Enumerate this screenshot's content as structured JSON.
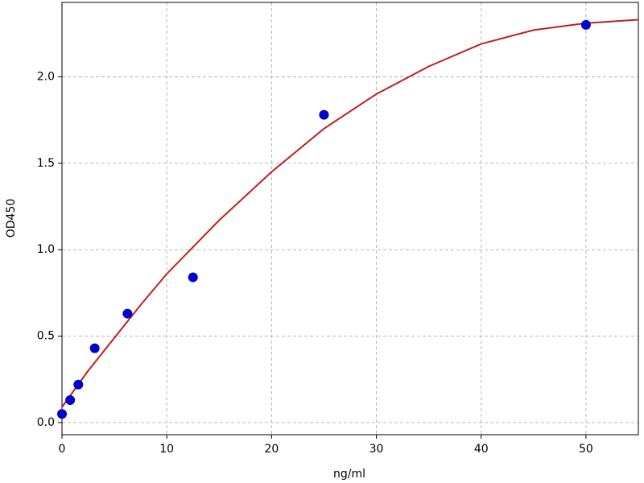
{
  "chart_data": {
    "type": "scatter",
    "x_label": "ng/ml",
    "y_label": "OD450",
    "xlim": [
      0,
      55
    ],
    "xticks": [
      0,
      10,
      20,
      30,
      40,
      50
    ],
    "ylim": [
      -0.07,
      2.43
    ],
    "yticks": [
      {
        "value": 0,
        "label": "0.0"
      },
      0.5,
      {
        "value": 1,
        "label": "1.0"
      },
      1.5,
      {
        "value": 2,
        "label": "2.0"
      }
    ],
    "grid": true,
    "series": [
      {
        "type": "scatter",
        "color": "#0000cc",
        "x": [
          0,
          0.78,
          1.56,
          3.125,
          6.25,
          12.5,
          25,
          50
        ],
        "values": [
          0.05,
          0.13,
          0.22,
          0.43,
          0.63,
          0.84,
          1.78,
          2.3
        ]
      },
      {
        "type": "line",
        "color": "#c0201e",
        "x": [
          0,
          2.5,
          5,
          7.5,
          10,
          15,
          20,
          25,
          30,
          35,
          40,
          45,
          50,
          55
        ],
        "values": [
          0.09,
          0.3,
          0.49,
          0.68,
          0.86,
          1.17,
          1.45,
          1.7,
          1.9,
          2.06,
          2.19,
          2.27,
          2.31,
          2.33
        ]
      }
    ]
  }
}
